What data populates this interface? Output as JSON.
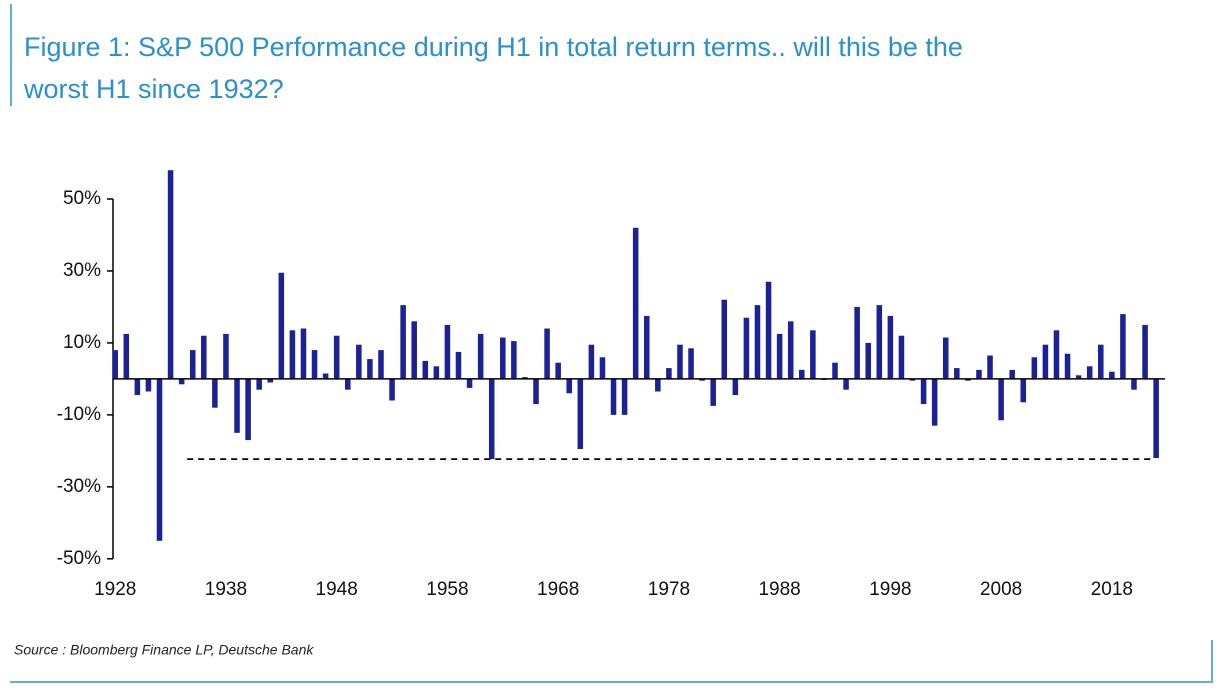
{
  "chart_data": {
    "type": "bar",
    "title_lines": [
      "Figure 1: S&P 500 Performance during H1 in total return terms.. will this be the",
      "worst H1 since 1932?"
    ],
    "source": "Source : Bloomberg Finance LP, Deutsche Bank",
    "color": "#1c2296",
    "x": [
      1928,
      1929,
      1930,
      1931,
      1932,
      1933,
      1934,
      1935,
      1936,
      1937,
      1938,
      1939,
      1940,
      1941,
      1942,
      1943,
      1944,
      1945,
      1946,
      1947,
      1948,
      1949,
      1950,
      1951,
      1952,
      1953,
      1954,
      1955,
      1956,
      1957,
      1958,
      1959,
      1960,
      1961,
      1962,
      1963,
      1964,
      1965,
      1966,
      1967,
      1968,
      1969,
      1970,
      1971,
      1972,
      1973,
      1974,
      1975,
      1976,
      1977,
      1978,
      1979,
      1980,
      1981,
      1982,
      1983,
      1984,
      1985,
      1986,
      1987,
      1988,
      1989,
      1990,
      1991,
      1992,
      1993,
      1994,
      1995,
      1996,
      1997,
      1998,
      1999,
      2000,
      2001,
      2002,
      2003,
      2004,
      2005,
      2006,
      2007,
      2008,
      2009,
      2010,
      2011,
      2012,
      2013,
      2014,
      2015,
      2016,
      2017,
      2018,
      2019,
      2020,
      2021,
      2022
    ],
    "values": [
      8,
      12.5,
      -4.5,
      -3.5,
      -45,
      58,
      -1.5,
      8,
      12,
      -8,
      12.5,
      -15,
      -17,
      -3,
      -1,
      29.5,
      13.5,
      14,
      8,
      1.5,
      12,
      -3,
      9.5,
      5.5,
      8,
      -6,
      20.5,
      16,
      5,
      3.5,
      15,
      7.5,
      -2.5,
      12.5,
      -22.3,
      11.5,
      10.5,
      0.5,
      -7,
      14,
      4.5,
      -4,
      -19.5,
      9.5,
      6,
      -10,
      -10,
      42,
      17.5,
      -3.5,
      3,
      9.5,
      8.5,
      -0.5,
      -7.5,
      22,
      -4.5,
      17,
      20.5,
      27,
      12.5,
      16,
      2.5,
      13.5,
      -0.3,
      4.5,
      -3,
      20,
      10,
      20.5,
      17.5,
      12,
      -0.5,
      -7,
      -13,
      11.5,
      3,
      -0.5,
      2.5,
      6.5,
      -11.5,
      2.5,
      -6.5,
      6,
      9.5,
      13.5,
      7,
      1,
      3.5,
      9.5,
      2,
      18,
      -3,
      15,
      -22
    ],
    "xlim": [
      1927.8,
      2022.8
    ],
    "xticks": [
      1928,
      1938,
      1948,
      1958,
      1968,
      1978,
      1988,
      1998,
      2008,
      2018
    ],
    "ylim": [
      -52,
      60
    ],
    "yticks": [
      {
        "value": 50,
        "label": "50%"
      },
      {
        "value": 30,
        "label": "30%"
      },
      {
        "value": 10,
        "label": "10%"
      },
      {
        "value": -10,
        "label": "-10%"
      },
      {
        "value": -30,
        "label": "-30%"
      },
      {
        "value": -50,
        "label": "-50%"
      }
    ],
    "reference_line": {
      "value": -22.3,
      "from": 1934.5,
      "to": 2021.5
    }
  }
}
